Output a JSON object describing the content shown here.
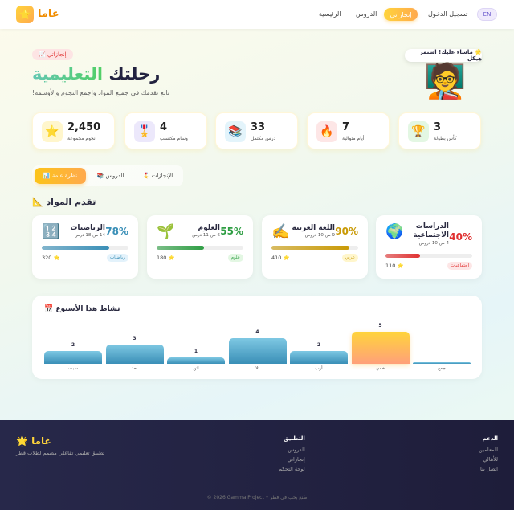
{
  "nav": {
    "logo_icon": "star-icon",
    "logo_text": "غاما",
    "links": [
      "الرئيسية",
      "الدروس"
    ],
    "active": "إنجازاتي",
    "login": "تسجيل الدخول",
    "lang": "EN"
  },
  "hero": {
    "badge": "إنجازاتي 📈",
    "title_a": "رحلتك",
    "title_b": "التعليمية",
    "subtitle": "تابع تقدمك في جميع المواد واجمع النجوم والأوسمة!",
    "bubble": "🌟 ماشاء عليك! استمر هيكل",
    "avatar": "🧑‍🏫"
  },
  "stats": [
    {
      "icon": "⭐",
      "value": "2,450",
      "label": "نجوم مجموعة",
      "bg": "#fff6cc"
    },
    {
      "icon": "🎖️",
      "value": "4",
      "label": "وسام مكتسب",
      "bg": "#ece8fb"
    },
    {
      "icon": "📚",
      "value": "33",
      "label": "درس مكتمل",
      "bg": "#e3f4fb"
    },
    {
      "icon": "🔥",
      "value": "7",
      "label": "أيام متوالية",
      "bg": "#fde6e6"
    },
    {
      "icon": "🏆",
      "value": "3",
      "label": "كأس بطولة",
      "bg": "#e3f7e3"
    }
  ],
  "tabs": [
    {
      "label": "نظرة عامة 📊",
      "active": true
    },
    {
      "label": "الدروس 📚"
    },
    {
      "label": "الإنجازات 🎖️"
    }
  ],
  "section_title": "تقدم المواد 📐",
  "subjects": [
    {
      "icon": "🔢",
      "name": "الرياضيات",
      "lessons": "14 من 18 درس",
      "percent": 78,
      "percent_label": "78%",
      "stars": "320 ⭐",
      "tag": "رياضيات",
      "color": "#3a8fb7",
      "tag_bg": "#e3f2fb"
    },
    {
      "icon": "🌱",
      "name": "العلوم",
      "lessons": "6 من 11 درس",
      "percent": 55,
      "percent_label": "55%",
      "stars": "180 ⭐",
      "tag": "علوم",
      "color": "#2f9e44",
      "tag_bg": "#e3f7e3"
    },
    {
      "icon": "✍️",
      "name": "اللغة العربية",
      "lessons": "9 من 10 دروس",
      "percent": 90,
      "percent_label": "90%",
      "stars": "410 ⭐",
      "tag": "عربي",
      "color": "#c99a06",
      "tag_bg": "#fff6cc"
    },
    {
      "icon": "🌍",
      "name": "الدراسات الاجتماعية",
      "lessons": "4 من 10 دروس",
      "percent": 40,
      "percent_label": "40%",
      "stars": "110 ⭐",
      "tag": "اجتماعيات",
      "color": "#e03131",
      "tag_bg": "#fde6e6"
    }
  ],
  "chart_data": {
    "type": "bar",
    "title": "نشاط هذا الأسبوع 📅",
    "categories": [
      "سبت",
      "أحد",
      "اثن",
      "ثلا",
      "أرب",
      "خمي",
      "جمع"
    ],
    "values": [
      2,
      3,
      1,
      4,
      2,
      5,
      0
    ],
    "highlight": "خمي"
  },
  "footer": {
    "logo": "غاما 🌟",
    "tagline": "تطبيق تعليمي تفاعلي مصمم لطلاب قطر",
    "app": {
      "title": "التطبيق",
      "items": [
        "الدروس",
        "إنجازاتي",
        "لوحة التحكم"
      ]
    },
    "support": {
      "title": "الدعم",
      "items": [
        "للمعلمين",
        "للأهالي",
        "اتصل بنا"
      ]
    },
    "copyright": "© 2026 Gamma Project • صُنع بحب في قطر"
  }
}
